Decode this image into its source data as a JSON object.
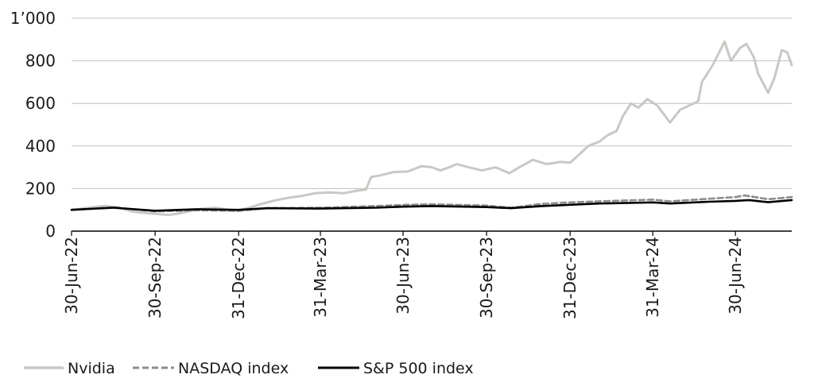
{
  "chart_data": {
    "type": "line",
    "title": "",
    "xlabel": "",
    "ylabel": "",
    "ylim": [
      0,
      1000
    ],
    "yticks": [
      0,
      200,
      400,
      600,
      800,
      1000
    ],
    "ytick_labels": [
      "0",
      "200",
      "400",
      "600",
      "800",
      "1’000"
    ],
    "xlim": [
      "2022-06-30",
      "2024-08-31"
    ],
    "xticks": [
      {
        "date": "2022-06-30",
        "label": "30-Jun-22"
      },
      {
        "date": "2022-09-30",
        "label": "30-Sep-22"
      },
      {
        "date": "2022-12-31",
        "label": "31-Dec-22"
      },
      {
        "date": "2023-03-31",
        "label": "31-Mar-23"
      },
      {
        "date": "2023-06-30",
        "label": "30-Jun-23"
      },
      {
        "date": "2023-09-30",
        "label": "30-Sep-23"
      },
      {
        "date": "2023-12-31",
        "label": "31-Dec-23"
      },
      {
        "date": "2024-03-31",
        "label": "31-Mar-24"
      },
      {
        "date": "2024-06-30",
        "label": "30-Jun-24"
      }
    ],
    "grid": "horizontal",
    "legend_position": "bottom-left",
    "series": [
      {
        "name": "Nvidia",
        "color": "#c8c8c4",
        "style": "solid",
        "points": [
          [
            "2022-06-30",
            100
          ],
          [
            "2022-07-15",
            108
          ],
          [
            "2022-08-05",
            118
          ],
          [
            "2022-08-20",
            112
          ],
          [
            "2022-09-05",
            92
          ],
          [
            "2022-09-20",
            85
          ],
          [
            "2022-10-05",
            80
          ],
          [
            "2022-10-15",
            76
          ],
          [
            "2022-10-25",
            82
          ],
          [
            "2022-11-05",
            92
          ],
          [
            "2022-11-20",
            105
          ],
          [
            "2022-12-05",
            110
          ],
          [
            "2022-12-20",
            100
          ],
          [
            "2022-12-31",
            98
          ],
          [
            "2023-01-10",
            108
          ],
          [
            "2023-01-25",
            128
          ],
          [
            "2023-02-10",
            145
          ],
          [
            "2023-02-25",
            158
          ],
          [
            "2023-03-10",
            165
          ],
          [
            "2023-03-25",
            178
          ],
          [
            "2023-04-10",
            182
          ],
          [
            "2023-04-25",
            178
          ],
          [
            "2023-05-10",
            190
          ],
          [
            "2023-05-20",
            195
          ],
          [
            "2023-05-26",
            255
          ],
          [
            "2023-06-05",
            262
          ],
          [
            "2023-06-20",
            278
          ],
          [
            "2023-07-05",
            280
          ],
          [
            "2023-07-20",
            305
          ],
          [
            "2023-08-01",
            300
          ],
          [
            "2023-08-10",
            285
          ],
          [
            "2023-08-20",
            300
          ],
          [
            "2023-08-28",
            315
          ],
          [
            "2023-09-10",
            300
          ],
          [
            "2023-09-25",
            285
          ],
          [
            "2023-10-10",
            300
          ],
          [
            "2023-10-25",
            272
          ],
          [
            "2023-11-05",
            300
          ],
          [
            "2023-11-20,",
            335
          ],
          [
            "2023-12-05",
            315
          ],
          [
            "2023-12-20",
            325
          ],
          [
            "2023-12-31",
            322
          ],
          [
            "2024-01-10",
            360
          ],
          [
            "2024-01-20",
            400
          ],
          [
            "2024-02-01",
            420
          ],
          [
            "2024-02-10",
            450
          ],
          [
            "2024-02-20",
            470
          ],
          [
            "2024-02-27",
            540
          ],
          [
            "2024-03-07",
            600
          ],
          [
            "2024-03-15",
            580
          ],
          [
            "2024-03-25",
            620
          ],
          [
            "2024-04-05",
            590
          ],
          [
            "2024-04-19",
            510
          ],
          [
            "2024-04-30",
            570
          ],
          [
            "2024-05-10",
            590
          ],
          [
            "2024-05-20",
            610
          ],
          [
            "2024-05-24",
            700
          ],
          [
            "2024-06-05",
            780
          ],
          [
            "2024-06-18",
            890
          ],
          [
            "2024-06-25",
            800
          ],
          [
            "2024-07-05",
            860
          ],
          [
            "2024-07-12",
            880
          ],
          [
            "2024-07-20",
            820
          ],
          [
            "2024-07-25",
            740
          ],
          [
            "2024-08-05",
            650
          ],
          [
            "2024-08-12",
            720
          ],
          [
            "2024-08-20",
            850
          ],
          [
            "2024-08-26",
            840
          ],
          [
            "2024-08-31",
            780
          ]
        ]
      },
      {
        "name": "NASDAQ index",
        "color": "#8c8c8c",
        "style": "dashed",
        "points": [
          [
            "2022-06-30",
            100
          ],
          [
            "2022-08-15",
            112
          ],
          [
            "2022-09-30",
            93
          ],
          [
            "2022-11-15",
            98
          ],
          [
            "2022-12-31",
            95
          ],
          [
            "2023-02-01",
            108
          ],
          [
            "2023-03-31",
            110
          ],
          [
            "2023-05-31",
            118
          ],
          [
            "2023-06-30",
            123
          ],
          [
            "2023-07-31",
            126
          ],
          [
            "2023-09-30",
            120
          ],
          [
            "2023-10-27",
            110
          ],
          [
            "2023-11-30",
            128
          ],
          [
            "2023-12-31",
            135
          ],
          [
            "2024-02-01",
            140
          ],
          [
            "2024-03-31",
            148
          ],
          [
            "2024-04-19",
            140
          ],
          [
            "2024-05-31",
            152
          ],
          [
            "2024-06-30",
            160
          ],
          [
            "2024-07-10",
            168
          ],
          [
            "2024-08-05",
            150
          ],
          [
            "2024-08-31",
            160
          ]
        ]
      },
      {
        "name": "S&P 500 index",
        "color": "#000000",
        "style": "solid",
        "points": [
          [
            "2022-06-30",
            100
          ],
          [
            "2022-08-15",
            110
          ],
          [
            "2022-09-30",
            96
          ],
          [
            "2022-11-15",
            103
          ],
          [
            "2022-12-31",
            100
          ],
          [
            "2023-02-01",
            108
          ],
          [
            "2023-03-31",
            106
          ],
          [
            "2023-05-31",
            110
          ],
          [
            "2023-06-30",
            115
          ],
          [
            "2023-07-31",
            118
          ],
          [
            "2023-09-30",
            113
          ],
          [
            "2023-10-27",
            108
          ],
          [
            "2023-11-30",
            118
          ],
          [
            "2023-12-31",
            124
          ],
          [
            "2024-02-01",
            130
          ],
          [
            "2024-03-31",
            135
          ],
          [
            "2024-04-19",
            130
          ],
          [
            "2024-05-31",
            138
          ],
          [
            "2024-06-30",
            142
          ],
          [
            "2024-07-15",
            146
          ],
          [
            "2024-08-05",
            136
          ],
          [
            "2024-08-31",
            146
          ]
        ]
      }
    ]
  }
}
